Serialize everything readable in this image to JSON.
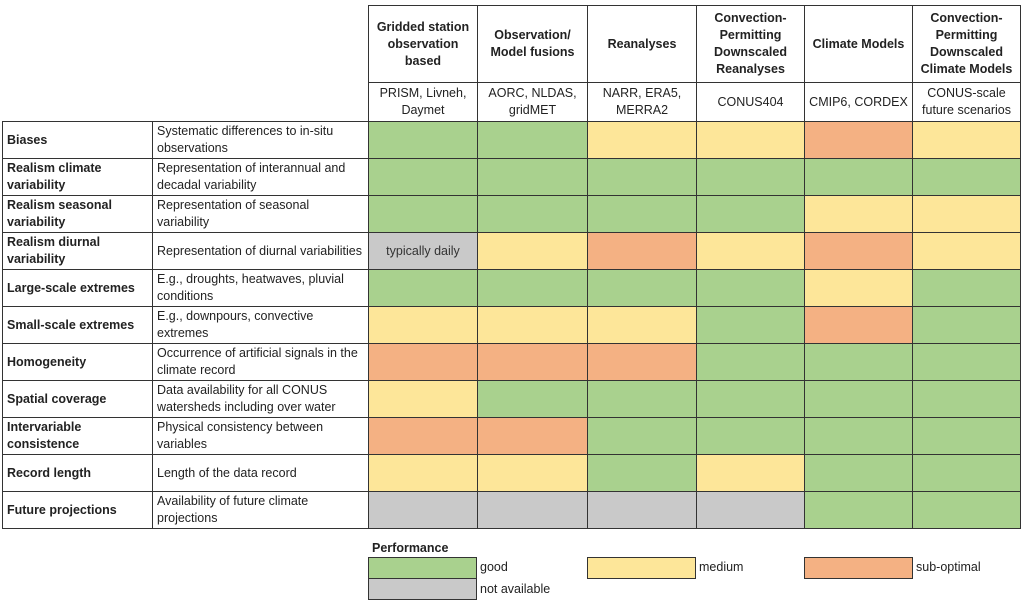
{
  "colors": {
    "good": "#a9d18e",
    "medium": "#fde699",
    "sub": "#f4b183",
    "na": "#c9c9c9"
  },
  "columns": [
    {
      "title": "Gridded station observation based",
      "examples": "PRISM, Livneh, Daymet"
    },
    {
      "title": "Observation/ Model fusions",
      "examples": "AORC, NLDAS, gridMET"
    },
    {
      "title": "Reanalyses",
      "examples": "NARR, ERA5, MERRA2"
    },
    {
      "title": "Convection-Permitting Downscaled Reanalyses",
      "examples": "CONUS404"
    },
    {
      "title": "Climate Models",
      "examples": "CMIP6, CORDEX"
    },
    {
      "title": "Convection-Permitting Downscaled Climate Models",
      "examples": "CONUS-scale future scenarios"
    }
  ],
  "rows": [
    {
      "name": "Biases",
      "desc": "Systematic differences to in-situ observations",
      "ratings": [
        "good",
        "good",
        "medium",
        "medium",
        "sub",
        "medium"
      ]
    },
    {
      "name": "Realism climate variability",
      "desc": "Representation of interannual and decadal variability",
      "ratings": [
        "good",
        "good",
        "good",
        "good",
        "good",
        "good"
      ]
    },
    {
      "name": "Realism seasonal variability",
      "desc": "Representation of seasonal variability",
      "ratings": [
        "good",
        "good",
        "good",
        "good",
        "medium",
        "medium"
      ]
    },
    {
      "name": "Realism diurnal variability",
      "desc": "Representation of diurnal variabilities",
      "ratings": [
        "na",
        "medium",
        "sub",
        "medium",
        "sub",
        "medium"
      ],
      "notes": [
        "typically daily"
      ]
    },
    {
      "name": "Large-scale extremes",
      "desc": "E.g., droughts, heatwaves, pluvial conditions",
      "ratings": [
        "good",
        "good",
        "good",
        "good",
        "medium",
        "good"
      ]
    },
    {
      "name": "Small-scale extremes",
      "desc": "E.g., downpours, convective extremes",
      "ratings": [
        "medium",
        "medium",
        "medium",
        "good",
        "sub",
        "good"
      ]
    },
    {
      "name": "Homogeneity",
      "desc": "Occurrence of artificial signals in the climate record",
      "ratings": [
        "sub",
        "sub",
        "sub",
        "good",
        "good",
        "good"
      ]
    },
    {
      "name": "Spatial coverage",
      "desc": "Data availability for all CONUS watersheds including over water",
      "ratings": [
        "medium",
        "good",
        "good",
        "good",
        "good",
        "good"
      ]
    },
    {
      "name": "Intervariable consistence",
      "desc": "Physical consistency between variables",
      "ratings": [
        "sub",
        "sub",
        "good",
        "good",
        "good",
        "good"
      ]
    },
    {
      "name": "Record length",
      "desc": "Length of the data record",
      "ratings": [
        "medium",
        "medium",
        "good",
        "medium",
        "good",
        "good"
      ]
    },
    {
      "name": "Future projections",
      "desc": "Availability of future climate projections",
      "ratings": [
        "na",
        "na",
        "na",
        "na",
        "good",
        "good"
      ]
    }
  ],
  "legend": {
    "title": "Performance",
    "good": "good",
    "medium": "medium",
    "sub": "sub-optimal",
    "na": "not available"
  }
}
